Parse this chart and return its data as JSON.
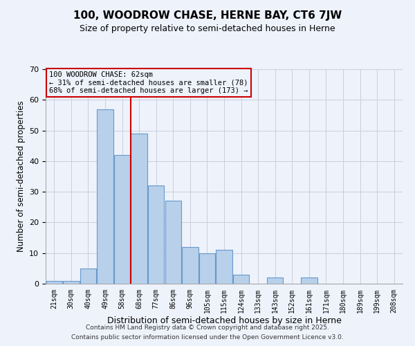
{
  "title": "100, WOODROW CHASE, HERNE BAY, CT6 7JW",
  "subtitle": "Size of property relative to semi-detached houses in Herne",
  "xlabel": "Distribution of semi-detached houses by size in Herne",
  "ylabel": "Number of semi-detached properties",
  "categories": [
    "21sqm",
    "30sqm",
    "40sqm",
    "49sqm",
    "58sqm",
    "68sqm",
    "77sqm",
    "86sqm",
    "96sqm",
    "105sqm",
    "115sqm",
    "124sqm",
    "133sqm",
    "143sqm",
    "152sqm",
    "161sqm",
    "171sqm",
    "180sqm",
    "189sqm",
    "199sqm",
    "208sqm"
  ],
  "values": [
    1,
    1,
    5,
    57,
    42,
    49,
    32,
    27,
    12,
    10,
    11,
    3,
    0,
    2,
    0,
    2,
    0,
    0,
    0,
    0,
    0
  ],
  "bar_color": "#b8d0ea",
  "bar_edge_color": "#6699cc",
  "ylim": [
    0,
    70
  ],
  "yticks": [
    0,
    10,
    20,
    30,
    40,
    50,
    60,
    70
  ],
  "vline_x_index": 4,
  "vline_color": "#cc0000",
  "ann_line1": "100 WOODROW CHASE: 62sqm",
  "ann_line2": "← 31% of semi-detached houses are smaller (78)",
  "ann_line3": "68% of semi-detached houses are larger (173) →",
  "annotation_box_color": "#cc0000",
  "bg_color": "#eef2fb",
  "footer_line1": "Contains HM Land Registry data © Crown copyright and database right 2025.",
  "footer_line2": "Contains public sector information licensed under the Open Government Licence v3.0.",
  "grid_color": "#c8cedc"
}
